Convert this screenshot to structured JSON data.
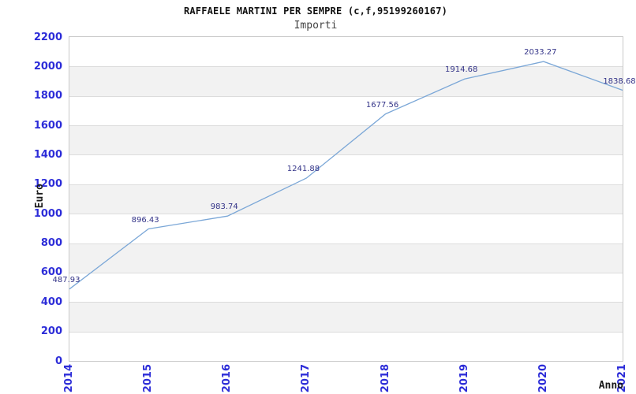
{
  "header": {
    "title": "RAFFAELE MARTINI PER SEMPRE (c,f,95199260167)",
    "subtitle": "Importi"
  },
  "chart_data": {
    "type": "line",
    "title": "RAFFAELE MARTINI PER SEMPRE (c,f,95199260167)",
    "subtitle": "Importi",
    "categories": [
      "2014",
      "2015",
      "2016",
      "2017",
      "2018",
      "2019",
      "2020",
      "2021"
    ],
    "values": [
      487.93,
      896.43,
      983.74,
      1241.88,
      1677.56,
      1914.68,
      2033.27,
      1838.68
    ],
    "point_labels": [
      "487.93",
      "896.43",
      "983.74",
      "1241.88",
      "1677.56",
      "1914.68",
      "2033.27",
      "1838.68"
    ],
    "xlabel": "Anno",
    "ylabel": "Euro",
    "ylim": [
      0,
      2200
    ],
    "y_tick_step": 200,
    "y_ticks": [
      "0",
      "200",
      "400",
      "600",
      "800",
      "1000",
      "1200",
      "1400",
      "1600",
      "1800",
      "2000",
      "2200"
    ],
    "grid": "alternating horizontal bands, no vertical gridlines",
    "legend_position": "none",
    "markers": "none",
    "colors": {
      "line": "#7ba7d7",
      "axis_tick_text": "#2c2cd8",
      "point_label_text": "#333388",
      "band_fill": "#f2f2f2",
      "band_alt_fill": "#ffffff",
      "gridline": "#dcdcdc",
      "plot_border": "#c9c9c9",
      "title_text": "#111111",
      "subtitle_text": "#434343"
    }
  }
}
